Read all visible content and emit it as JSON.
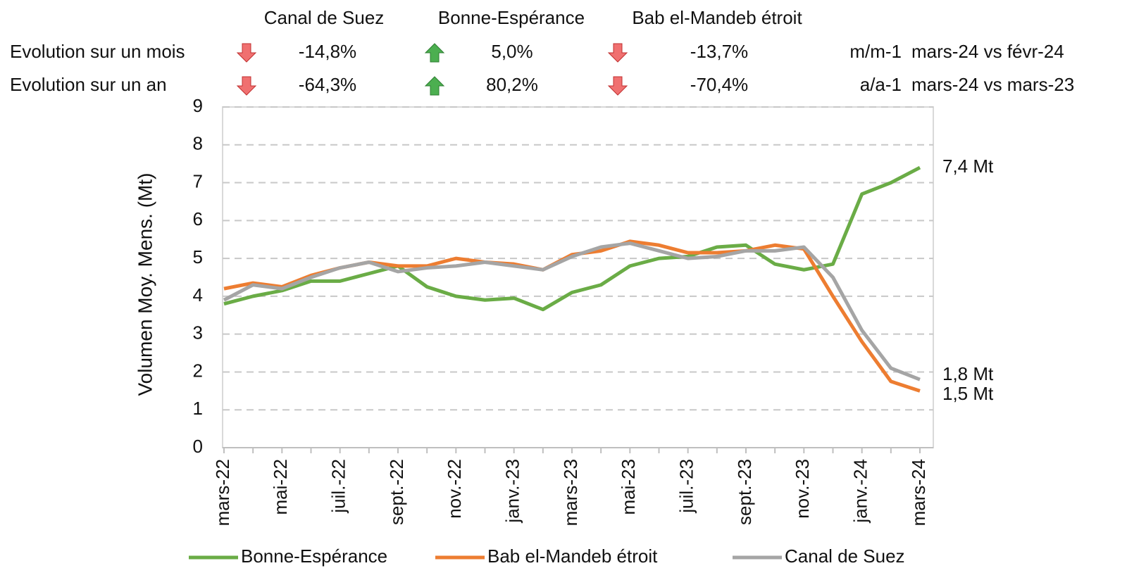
{
  "table": {
    "header": [
      "Canal de Suez",
      "Bonne-Espérance",
      "Bab el-Mandeb étroit"
    ],
    "rows": [
      {
        "label": "Evolution sur un mois",
        "values": [
          "-14,8%",
          "5,0%",
          "-13,7%"
        ],
        "measure": "m/m-1",
        "period": "mars-24 vs févr-24"
      },
      {
        "label": "Evolution sur un an",
        "values": [
          "-64,3%",
          "80,2%",
          "-70,4%"
        ],
        "measure": "a/a-1",
        "period": "mars-24 vs mars-23"
      }
    ]
  },
  "chart_data": {
    "type": "line",
    "y_label": "Volumen Moy. Mens. (Mt)",
    "categories": [
      "mars-22",
      null,
      "mai-22",
      null,
      "juil.-22",
      null,
      "sept.-22",
      null,
      "nov.-22",
      null,
      "janv.-23",
      null,
      "mars-23",
      null,
      "mai-23",
      null,
      "juil.-23",
      null,
      "sept.-23",
      null,
      "nov.-23",
      null,
      "janv.-24",
      null,
      "mars-24"
    ],
    "series": [
      {
        "name": "Bonne-Espérance",
        "color": "#6aac46",
        "values": [
          3.8,
          4.0,
          4.15,
          4.4,
          4.4,
          4.6,
          4.8,
          4.25,
          4.0,
          3.9,
          3.95,
          3.65,
          4.1,
          4.3,
          4.8,
          5.0,
          5.05,
          5.3,
          5.35,
          4.85,
          4.7,
          4.85,
          6.7,
          7.0,
          7.4
        ]
      },
      {
        "name": "Bab el-Mandeb étroit",
        "color": "#ed7d31",
        "values": [
          4.2,
          4.35,
          4.25,
          4.55,
          4.75,
          4.9,
          4.8,
          4.8,
          5.0,
          4.9,
          4.85,
          4.7,
          5.1,
          5.2,
          5.45,
          5.35,
          5.15,
          5.15,
          5.2,
          5.35,
          5.25,
          4.0,
          2.8,
          1.75,
          1.5
        ]
      },
      {
        "name": "Canal de Suez",
        "color": "#a5a5a5",
        "values": [
          3.9,
          4.3,
          4.2,
          4.5,
          4.75,
          4.9,
          4.65,
          4.75,
          4.8,
          4.9,
          4.8,
          4.7,
          5.05,
          5.3,
          5.4,
          5.2,
          5.0,
          5.05,
          5.2,
          5.2,
          5.3,
          4.5,
          3.1,
          2.1,
          1.8
        ]
      }
    ],
    "ylim": [
      0,
      9
    ],
    "yticks": [
      0,
      1,
      2,
      3,
      4,
      5,
      6,
      7,
      8,
      9
    ],
    "grid": true,
    "annotations": [
      {
        "text": "7,4 Mt",
        "value": 7.4
      },
      {
        "text": "1,8 Mt",
        "value": 1.8
      },
      {
        "text": "1,5 Mt",
        "value": 1.5
      }
    ]
  }
}
